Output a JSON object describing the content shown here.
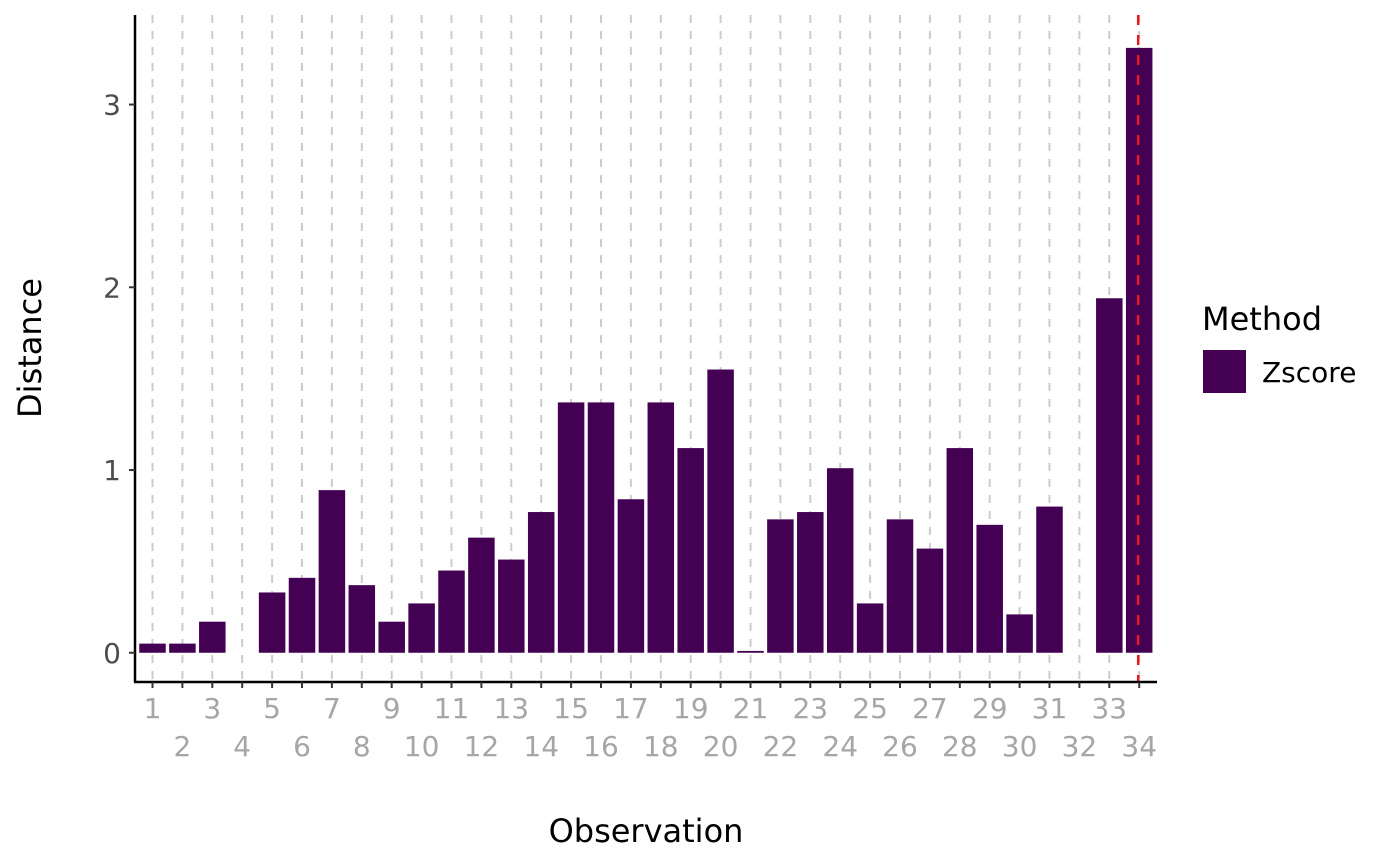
{
  "chart_data": {
    "type": "bar",
    "xlabel": "Observation",
    "ylabel": "Distance",
    "categories": [
      "1",
      "2",
      "3",
      "4",
      "5",
      "6",
      "7",
      "8",
      "9",
      "10",
      "11",
      "12",
      "13",
      "14",
      "15",
      "16",
      "17",
      "18",
      "19",
      "20",
      "21",
      "22",
      "23",
      "24",
      "25",
      "26",
      "27",
      "28",
      "29",
      "30",
      "31",
      "32",
      "33",
      "34"
    ],
    "series": [
      {
        "name": "Zscore",
        "color": "#440154",
        "values": [
          0.05,
          0.05,
          0.17,
          0.0,
          0.33,
          0.41,
          0.89,
          0.37,
          0.17,
          0.27,
          0.45,
          0.63,
          0.51,
          0.77,
          1.37,
          1.37,
          0.84,
          1.37,
          1.12,
          1.55,
          0.01,
          0.73,
          0.77,
          1.01,
          0.27,
          0.73,
          0.57,
          1.12,
          0.7,
          0.21,
          0.8,
          0.0,
          1.94,
          3.31
        ]
      }
    ],
    "ylim": [
      -0.16,
      3.49
    ],
    "yticks": [
      0,
      1,
      2,
      3
    ],
    "grid": {
      "vertical_dashed": true,
      "horizontal": false
    },
    "highlight": {
      "x": "34",
      "color": "#e41a1c",
      "style": "dashed"
    },
    "legend": {
      "title": "Method",
      "position": "right"
    }
  }
}
